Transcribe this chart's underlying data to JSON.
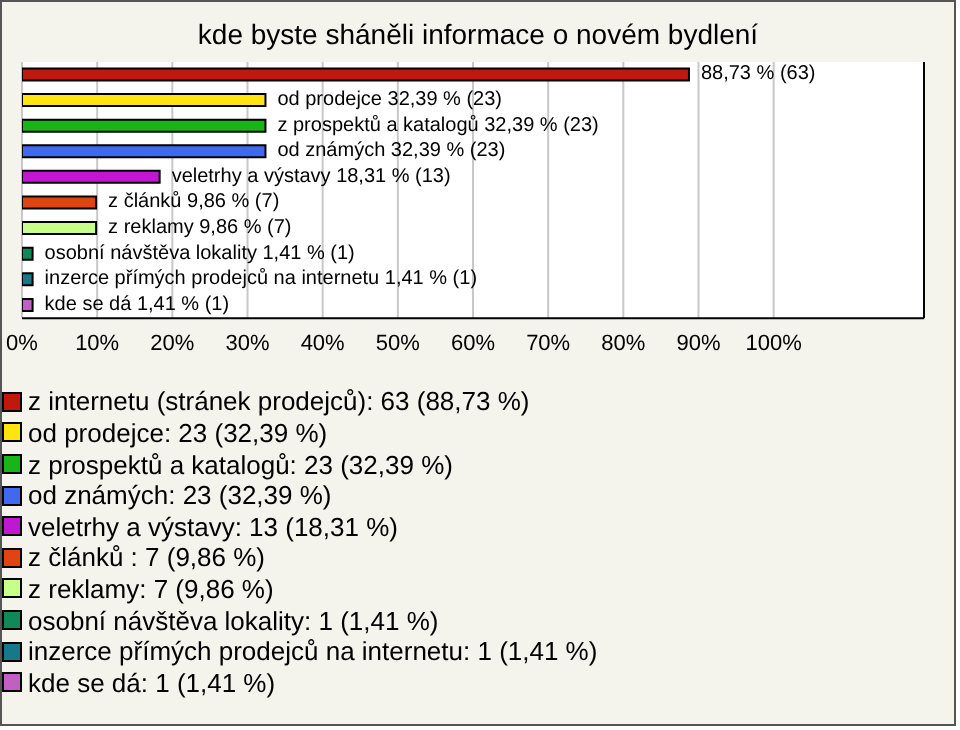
{
  "chart_data": {
    "type": "bar",
    "orientation": "horizontal",
    "stacked": true,
    "title": "kde byste sháněli informace o novém bydlení",
    "categories": [
      null,
      null,
      null,
      null,
      null,
      null,
      null,
      null,
      null,
      null
    ],
    "series": [
      {
        "name": "z internetu (stránek prodejců): 63 (88,73 %)",
        "color": "#c0180c",
        "values": [
          88.73,
          null,
          null,
          null,
          null,
          null,
          null,
          null,
          null,
          null
        ],
        "value_labels": [
          "88,73 % (63)",
          null,
          null,
          null,
          null,
          null,
          null,
          null,
          null,
          null
        ]
      },
      {
        "name": "od prodejce: 23 (32,39 %)",
        "color": "#ffe410",
        "values": [
          null,
          32.39,
          null,
          null,
          null,
          null,
          null,
          null,
          null,
          null
        ],
        "value_labels": [
          null,
          "od prodejce 32,39 % (23)",
          null,
          null,
          null,
          null,
          null,
          null,
          null,
          null
        ]
      },
      {
        "name": "z prospektů a katalogů: 23 (32,39 %)",
        "color": "#18b418",
        "values": [
          null,
          null,
          32.39,
          null,
          null,
          null,
          null,
          null,
          null,
          null
        ],
        "value_labels": [
          null,
          null,
          "z prospektů a katalogů 32,39 % (23)",
          null,
          null,
          null,
          null,
          null,
          null,
          null
        ]
      },
      {
        "name": "od známých: 23 (32,39 %)",
        "color": "#4068f0",
        "values": [
          null,
          null,
          null,
          32.39,
          null,
          null,
          null,
          null,
          null,
          null
        ],
        "value_labels": [
          null,
          null,
          null,
          "od známých 32,39 % (23)",
          null,
          null,
          null,
          null,
          null,
          null
        ]
      },
      {
        "name": "veletrhy a výstavy: 13 (18,31 %)",
        "color": "#c018d0",
        "values": [
          null,
          null,
          null,
          null,
          18.31,
          null,
          null,
          null,
          null,
          null
        ],
        "value_labels": [
          null,
          null,
          null,
          null,
          "veletrhy a výstavy 18,31 % (13)",
          null,
          null,
          null,
          null,
          null
        ]
      },
      {
        "name": "z článků : 7 (9,86 %)",
        "color": "#e04410",
        "values": [
          null,
          null,
          null,
          null,
          null,
          9.86,
          null,
          null,
          null,
          null
        ],
        "value_labels": [
          null,
          null,
          null,
          null,
          null,
          "z článků  9,86 % (7)",
          null,
          null,
          null,
          null
        ]
      },
      {
        "name": "z reklamy: 7 (9,86 %)",
        "color": "#c8ff88",
        "values": [
          null,
          null,
          null,
          null,
          null,
          null,
          9.86,
          null,
          null,
          null
        ],
        "value_labels": [
          null,
          null,
          null,
          null,
          null,
          null,
          "z reklamy 9,86 % (7)",
          null,
          null,
          null
        ]
      },
      {
        "name": "osobní návštěva lokality: 1 (1,41 %)",
        "color": "#108858",
        "values": [
          null,
          null,
          null,
          null,
          null,
          null,
          null,
          1.41,
          null,
          null
        ],
        "value_labels": [
          null,
          null,
          null,
          null,
          null,
          null,
          null,
          "osobní návštěva lokality 1,41 % (1)",
          null,
          null
        ]
      },
      {
        "name": "inzerce přímých prodejců na internetu: 1 (1,41 %)",
        "color": "#187888",
        "values": [
          null,
          null,
          null,
          null,
          null,
          null,
          null,
          null,
          1.41,
          null
        ],
        "value_labels": [
          null,
          null,
          null,
          null,
          null,
          null,
          null,
          null,
          "inzerce přímých prodejců na internetu 1,41 % (1)",
          null
        ]
      },
      {
        "name": "kde se dá: 1 (1,41 %)",
        "color": "#c060c0",
        "values": [
          null,
          null,
          null,
          null,
          null,
          null,
          null,
          null,
          null,
          1.41
        ],
        "value_labels": [
          null,
          null,
          null,
          null,
          null,
          null,
          null,
          null,
          null,
          "kde se dá 1,41 % (1)"
        ]
      }
    ],
    "xlim": [
      0,
      120
    ],
    "xticks": [
      {
        "value": 0,
        "label": "0%"
      },
      {
        "value": 10,
        "label": "10%"
      },
      {
        "value": 20,
        "label": "20%"
      },
      {
        "value": 30,
        "label": "30%"
      },
      {
        "value": 40,
        "label": "40%"
      },
      {
        "value": 50,
        "label": "50%"
      },
      {
        "value": 60,
        "label": "60%"
      },
      {
        "value": 70,
        "label": "70%"
      },
      {
        "value": 80,
        "label": "80%"
      },
      {
        "value": 90,
        "label": "90%"
      },
      {
        "value": 100,
        "label": "100%"
      }
    ],
    "grid": "x",
    "tick_labels": "x",
    "legend": "bottom"
  }
}
